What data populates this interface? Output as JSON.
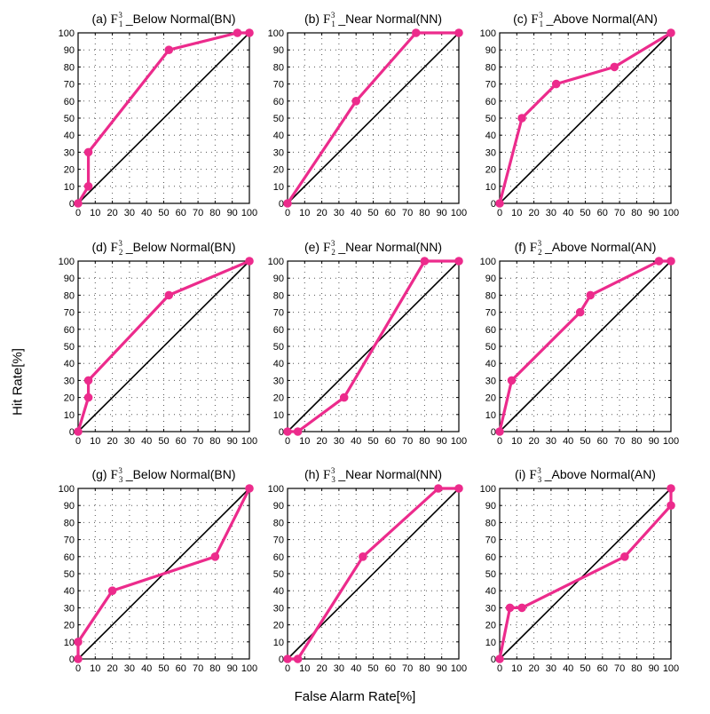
{
  "xlabel": "False Alarm Rate[%]",
  "ylabel": "Hit Rate[%]",
  "colors": {
    "series": "#ec2b8c",
    "diagonal": "#000000",
    "grid": "#555555"
  },
  "chart_data": [
    {
      "type": "line",
      "panel_tag": "(a)",
      "sub": "1",
      "sup": "3",
      "class_label": "_Below Normal(BN)",
      "xlim": [
        0,
        100
      ],
      "ylim": [
        0,
        100
      ],
      "xticks": [
        "0",
        "10",
        "20",
        "30",
        "40",
        "50",
        "60",
        "70",
        "80",
        "90",
        "100"
      ],
      "yticks": [
        "0",
        "10",
        "20",
        "30",
        "40",
        "50",
        "60",
        "70",
        "80",
        "90",
        "100"
      ],
      "grid": true,
      "points": [
        [
          0,
          0
        ],
        [
          6,
          10
        ],
        [
          6,
          30
        ],
        [
          53,
          90
        ],
        [
          93,
          100
        ],
        [
          100,
          100
        ]
      ]
    },
    {
      "type": "line",
      "panel_tag": "(b)",
      "sub": "1",
      "sup": "3",
      "class_label": "_Near Normal(NN)",
      "xlim": [
        0,
        100
      ],
      "ylim": [
        0,
        100
      ],
      "xticks": [
        "0",
        "10",
        "20",
        "30",
        "40",
        "50",
        "60",
        "70",
        "80",
        "90",
        "100"
      ],
      "yticks": [
        "0",
        "10",
        "20",
        "30",
        "40",
        "50",
        "60",
        "70",
        "80",
        "90",
        "100"
      ],
      "grid": true,
      "points": [
        [
          0,
          0
        ],
        [
          40,
          60
        ],
        [
          75,
          100
        ],
        [
          100,
          100
        ]
      ]
    },
    {
      "type": "line",
      "panel_tag": "(c)",
      "sub": "1",
      "sup": "3",
      "class_label": "_Above Normal(AN)",
      "xlim": [
        0,
        100
      ],
      "ylim": [
        0,
        100
      ],
      "xticks": [
        "0",
        "10",
        "20",
        "30",
        "40",
        "50",
        "60",
        "70",
        "80",
        "90",
        "100"
      ],
      "yticks": [
        "0",
        "10",
        "20",
        "30",
        "40",
        "50",
        "60",
        "70",
        "80",
        "90",
        "100"
      ],
      "grid": true,
      "points": [
        [
          0,
          0
        ],
        [
          13,
          50
        ],
        [
          33,
          70
        ],
        [
          67,
          80
        ],
        [
          100,
          100
        ]
      ]
    },
    {
      "type": "line",
      "panel_tag": "(d)",
      "sub": "2",
      "sup": "3",
      "class_label": "_Below Normal(BN)",
      "xlim": [
        0,
        100
      ],
      "ylim": [
        0,
        100
      ],
      "xticks": [
        "0",
        "10",
        "20",
        "30",
        "40",
        "50",
        "60",
        "70",
        "80",
        "90",
        "100"
      ],
      "yticks": [
        "0",
        "10",
        "20",
        "30",
        "40",
        "50",
        "60",
        "70",
        "80",
        "90",
        "100"
      ],
      "grid": true,
      "points": [
        [
          0,
          0
        ],
        [
          6,
          20
        ],
        [
          6,
          30
        ],
        [
          53,
          80
        ],
        [
          100,
          100
        ]
      ]
    },
    {
      "type": "line",
      "panel_tag": "(e)",
      "sub": "2",
      "sup": "3",
      "class_label": "_Near Normal(NN)",
      "xlim": [
        0,
        100
      ],
      "ylim": [
        0,
        100
      ],
      "xticks": [
        "0",
        "10",
        "20",
        "30",
        "40",
        "50",
        "60",
        "70",
        "80",
        "90",
        "100"
      ],
      "yticks": [
        "0",
        "10",
        "20",
        "30",
        "40",
        "50",
        "60",
        "70",
        "80",
        "90",
        "100"
      ],
      "grid": true,
      "points": [
        [
          0,
          0
        ],
        [
          6,
          0
        ],
        [
          33,
          20
        ],
        [
          80,
          100
        ],
        [
          100,
          100
        ]
      ]
    },
    {
      "type": "line",
      "panel_tag": "(f)",
      "sub": "2",
      "sup": "3",
      "class_label": "_Above Normal(AN)",
      "xlim": [
        0,
        100
      ],
      "ylim": [
        0,
        100
      ],
      "xticks": [
        "0",
        "10",
        "20",
        "30",
        "40",
        "50",
        "60",
        "70",
        "80",
        "90",
        "100"
      ],
      "yticks": [
        "0",
        "10",
        "20",
        "30",
        "40",
        "50",
        "60",
        "70",
        "80",
        "90",
        "100"
      ],
      "grid": true,
      "points": [
        [
          0,
          0
        ],
        [
          7,
          30
        ],
        [
          47,
          70
        ],
        [
          53,
          80
        ],
        [
          93,
          100
        ],
        [
          100,
          100
        ]
      ]
    },
    {
      "type": "line",
      "panel_tag": "(g)",
      "sub": "3",
      "sup": "3",
      "class_label": "_Below Normal(BN)",
      "xlim": [
        0,
        100
      ],
      "ylim": [
        0,
        100
      ],
      "xticks": [
        "0",
        "10",
        "20",
        "30",
        "40",
        "50",
        "60",
        "70",
        "80",
        "90",
        "100"
      ],
      "yticks": [
        "0",
        "10",
        "20",
        "30",
        "40",
        "50",
        "60",
        "70",
        "80",
        "90",
        "100"
      ],
      "grid": true,
      "points": [
        [
          0,
          0
        ],
        [
          0,
          10
        ],
        [
          20,
          40
        ],
        [
          80,
          60
        ],
        [
          100,
          100
        ]
      ]
    },
    {
      "type": "line",
      "panel_tag": "(h)",
      "sub": "3",
      "sup": "3",
      "class_label": "_Near Normal(NN)",
      "xlim": [
        0,
        100
      ],
      "ylim": [
        0,
        100
      ],
      "xticks": [
        "0",
        "10",
        "20",
        "30",
        "40",
        "50",
        "60",
        "70",
        "80",
        "90",
        "100"
      ],
      "yticks": [
        "0",
        "10",
        "20",
        "30",
        "40",
        "50",
        "60",
        "70",
        "80",
        "90",
        "100"
      ],
      "grid": true,
      "points": [
        [
          0,
          0
        ],
        [
          6,
          0
        ],
        [
          44,
          60
        ],
        [
          88,
          100
        ],
        [
          100,
          100
        ]
      ]
    },
    {
      "type": "line",
      "panel_tag": "(i)",
      "sub": "3",
      "sup": "3",
      "class_label": "_Above Normal(AN)",
      "xlim": [
        0,
        100
      ],
      "ylim": [
        0,
        100
      ],
      "xticks": [
        "0",
        "10",
        "20",
        "30",
        "40",
        "50",
        "60",
        "70",
        "80",
        "90",
        "100"
      ],
      "yticks": [
        "0",
        "10",
        "20",
        "30",
        "40",
        "50",
        "60",
        "70",
        "80",
        "90",
        "100"
      ],
      "grid": true,
      "points": [
        [
          0,
          0
        ],
        [
          6,
          30
        ],
        [
          13,
          30
        ],
        [
          73,
          60
        ],
        [
          100,
          90
        ],
        [
          100,
          100
        ]
      ]
    }
  ]
}
